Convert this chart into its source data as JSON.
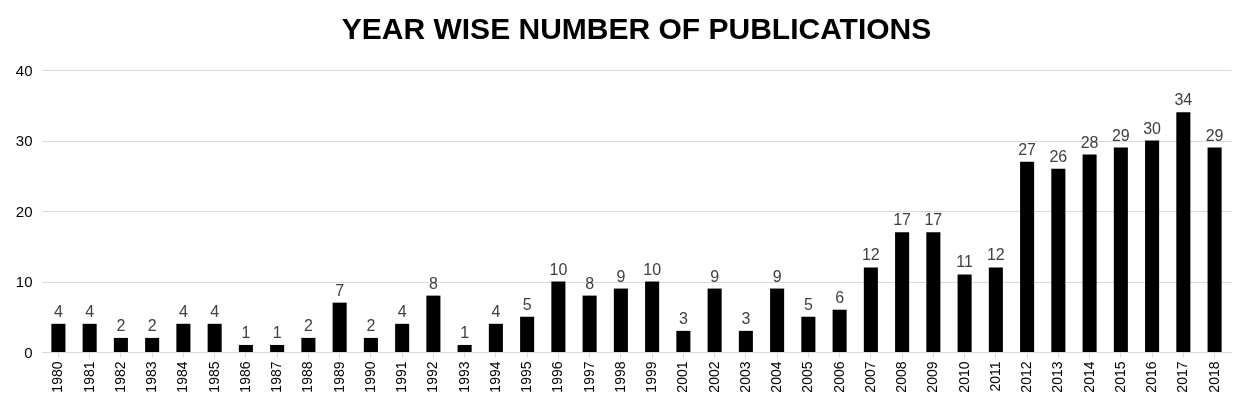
{
  "chart_data": {
    "type": "bar",
    "title": "YEAR WISE NUMBER OF PUBLICATIONS",
    "categories": [
      "1980",
      "1981",
      "1982",
      "1983",
      "1984",
      "1985",
      "1986",
      "1987",
      "1988",
      "1989",
      "1990",
      "1991",
      "1992",
      "1993",
      "1994",
      "1995",
      "1996",
      "1997",
      "1998",
      "1999",
      "2001",
      "2002",
      "2003",
      "2004",
      "2005",
      "2006",
      "2007",
      "2008",
      "2009",
      "2010",
      "2011",
      "2012",
      "2013",
      "2014",
      "2015",
      "2016",
      "2017",
      "2018"
    ],
    "values": [
      4,
      4,
      2,
      2,
      4,
      4,
      1,
      1,
      2,
      7,
      2,
      4,
      8,
      1,
      4,
      5,
      10,
      8,
      9,
      10,
      3,
      9,
      3,
      9,
      5,
      6,
      12,
      17,
      17,
      11,
      12,
      27,
      26,
      28,
      29,
      30,
      34,
      29
    ],
    "color": "#000000",
    "ylim": [
      0,
      40
    ],
    "yticks": [
      0,
      10,
      20,
      30,
      40
    ],
    "grid": "y",
    "data_labels": true
  }
}
